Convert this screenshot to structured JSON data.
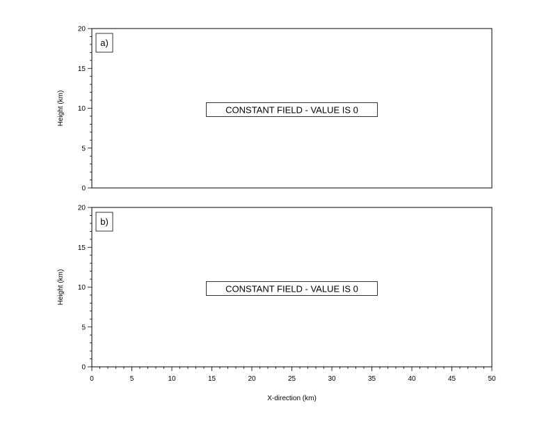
{
  "chart_data": [
    {
      "type": "heatmap",
      "panel_label": "a)",
      "message": "CONSTANT FIELD - VALUE IS 0",
      "ylabel": "Height (km)",
      "xlabel": "",
      "xlim": [
        0,
        50
      ],
      "ylim": [
        0,
        20
      ],
      "y_ticks": [
        "0",
        "5",
        "10",
        "15",
        "20"
      ],
      "x_ticks": [],
      "grid": false
    },
    {
      "type": "heatmap",
      "panel_label": "b)",
      "message": "CONSTANT FIELD - VALUE IS 0",
      "ylabel": "Height (km)",
      "xlabel": "X-direction (km)",
      "xlim": [
        0,
        50
      ],
      "ylim": [
        0,
        20
      ],
      "y_ticks": [
        "0",
        "5",
        "10",
        "15",
        "20"
      ],
      "x_ticks": [
        "0",
        "5",
        "10",
        "15",
        "20",
        "25",
        "30",
        "35",
        "40",
        "45",
        "50"
      ],
      "grid": false
    }
  ]
}
